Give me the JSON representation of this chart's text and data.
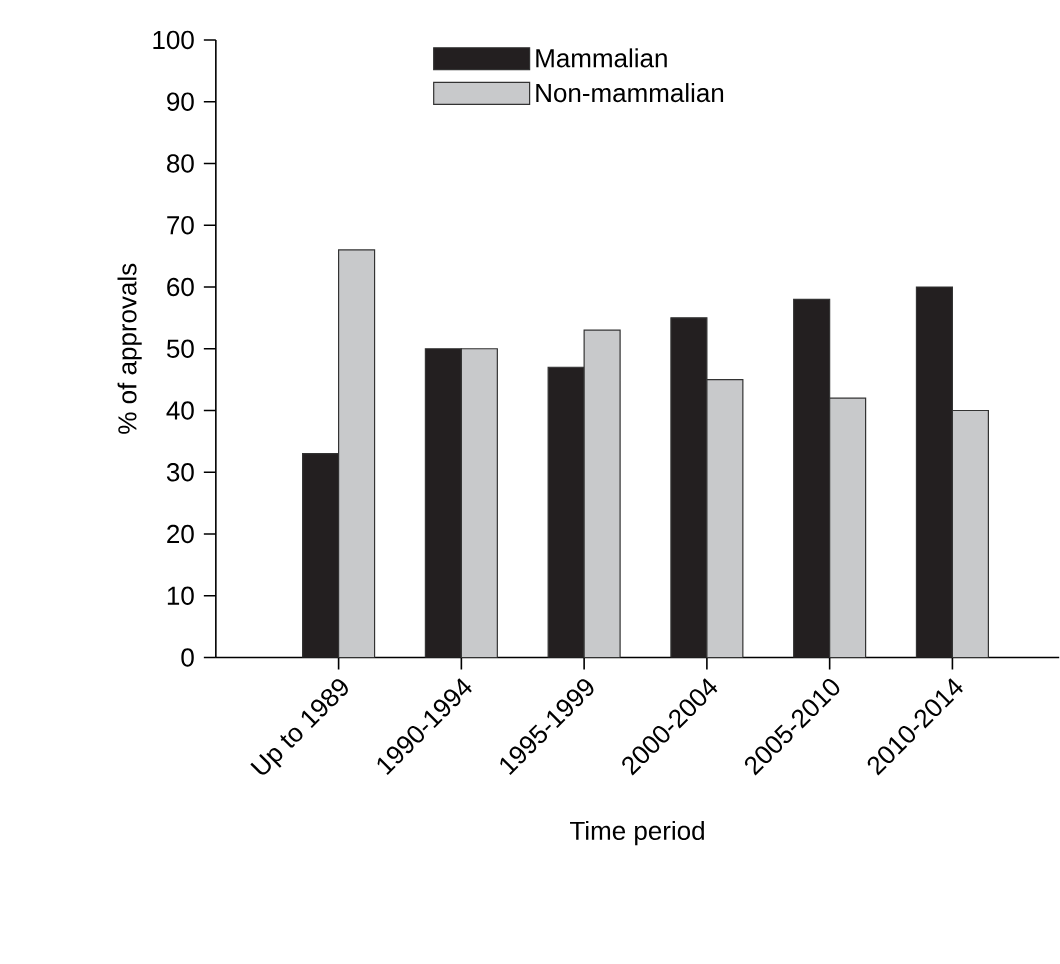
{
  "chart_data": {
    "type": "bar",
    "xlabel": "Time period",
    "ylabel": "% of approvals",
    "categories": [
      "Up to 1989",
      "1990-1994",
      "1995-1999",
      "2000-2004",
      "2005-2010",
      "2010-2014"
    ],
    "series": [
      {
        "name": "Mammalian",
        "color": "#231f20",
        "values": [
          33,
          50,
          47,
          55,
          58,
          60
        ]
      },
      {
        "name": "Non-mammalian",
        "color": "#c8c9cb",
        "values": [
          66,
          50,
          53,
          45,
          42,
          40
        ]
      }
    ],
    "ylim": [
      0,
      100
    ],
    "yticks": [
      0,
      10,
      20,
      30,
      40,
      50,
      60,
      70,
      80,
      90,
      100
    ],
    "legend": "top",
    "grid": false
  }
}
